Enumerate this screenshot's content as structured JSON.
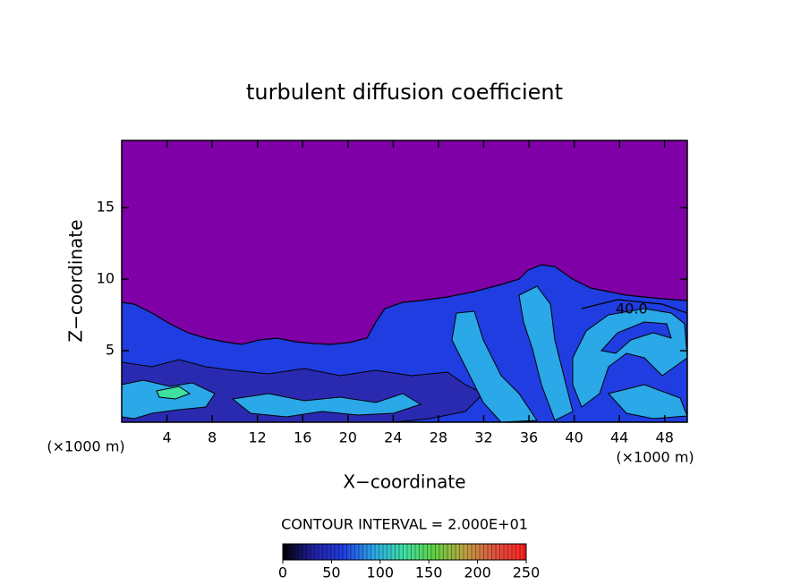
{
  "chart_data": {
    "type": "contour",
    "title": "turbulent diffusion coefficient",
    "xlabel": "X−coordinate",
    "ylabel": "Z−coordinate",
    "x_unit": "(×1000 m)",
    "y_unit": "(×1000 m)",
    "xlim": [
      0,
      50
    ],
    "xticks": [
      4,
      8,
      12,
      16,
      20,
      24,
      28,
      32,
      36,
      40,
      44,
      48
    ],
    "ylim": [
      0,
      19.7
    ],
    "yticks": [
      5,
      10,
      15
    ],
    "background_color": "#8000a8",
    "contour_label": "40.0",
    "colorbar": {
      "label": "CONTOUR INTERVAL = 2.000E+01",
      "lim": [
        0,
        250
      ],
      "ticks": [
        0,
        50,
        100,
        150,
        200,
        250
      ],
      "colors": [
        "#000000",
        "#2020a0",
        "#1f3de0",
        "#2aa8e8",
        "#3fe0a0",
        "#60d040",
        "#c0a040",
        "#e05040",
        "#ff2020"
      ]
    }
  }
}
